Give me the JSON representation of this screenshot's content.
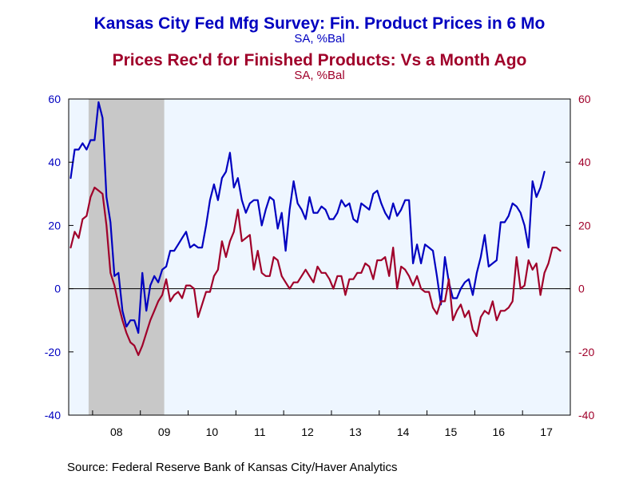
{
  "chart_data": {
    "type": "line",
    "title": "Kansas City Fed Mfg Survey: Fin. Product Prices in 6 Mo",
    "subtitle": "SA, %Bal",
    "title2": "Prices Rec'd for Finished Products: Vs a Month Ago",
    "subtitle2": "SA, %Bal",
    "x_tick_labels": [
      "08",
      "09",
      "10",
      "11",
      "12",
      "13",
      "14",
      "15",
      "16",
      "17"
    ],
    "x_range": [
      "2007-07",
      "2017-12"
    ],
    "ylim": [
      -40,
      60
    ],
    "y_ticks": [
      -40,
      -20,
      0,
      20,
      40,
      60
    ],
    "y2lim": [
      -40,
      60
    ],
    "y2_ticks": [
      -40,
      -20,
      0,
      20,
      40,
      60
    ],
    "recession_shading": {
      "start": "2007-12",
      "end": "2009-06",
      "color": "#c8c8c8"
    },
    "plot_background": "#eef6ff",
    "zero_line": true,
    "series": [
      {
        "name": "Kansas City Fed Mfg Survey: Fin. Product Prices in 6 Mo",
        "color": "#0000c0",
        "axis": "left",
        "start": "2007-07",
        "values": [
          35,
          44,
          44,
          46,
          44,
          47,
          47,
          59,
          54,
          29,
          21,
          4,
          5,
          -7,
          -12,
          -10,
          -10,
          -14,
          5,
          -7,
          1,
          4,
          2,
          6,
          7,
          12,
          12,
          14,
          16,
          18,
          13,
          14,
          13,
          13,
          20,
          28,
          33,
          28,
          35,
          37,
          43,
          32,
          35,
          28,
          24,
          27,
          28,
          28,
          20,
          25,
          29,
          28,
          19,
          24,
          12,
          25,
          34,
          27,
          25,
          22,
          29,
          24,
          24,
          26,
          25,
          22,
          22,
          24,
          28,
          26,
          27,
          22,
          21,
          27,
          26,
          25,
          30,
          31,
          27,
          24,
          22,
          27,
          23,
          25,
          28,
          28,
          8,
          14,
          8,
          14,
          13,
          12,
          4,
          -5,
          10,
          2,
          -3,
          -3,
          0,
          2,
          3,
          -2,
          5,
          10,
          17,
          7,
          8,
          9,
          21,
          21,
          23,
          27,
          26,
          24,
          20,
          13,
          34,
          29,
          32,
          37
        ]
      },
      {
        "name": "Prices Rec'd for Finished Products: Vs a Month Ago",
        "color": "#a0002a",
        "axis": "right",
        "start": "2007-07",
        "values": [
          13,
          18,
          16,
          22,
          23,
          29,
          32,
          31,
          30,
          20,
          5,
          1,
          -5,
          -10,
          -14,
          -17,
          -18,
          -21,
          -18,
          -14,
          -10,
          -7,
          -4,
          -2,
          3,
          -4,
          -2,
          -1,
          -3,
          1,
          1,
          0,
          -9,
          -5,
          -1,
          -1,
          4,
          6,
          15,
          10,
          15,
          18,
          25,
          15,
          16,
          17,
          6,
          12,
          5,
          4,
          4,
          10,
          9,
          4,
          2,
          0,
          2,
          2,
          4,
          6,
          4,
          2,
          7,
          5,
          5,
          3,
          0,
          4,
          4,
          -2,
          3,
          3,
          5,
          5,
          8,
          7,
          3,
          9,
          9,
          10,
          4,
          13,
          0,
          7,
          6,
          4,
          1,
          4,
          0,
          -1,
          -1,
          -6,
          -8,
          -4,
          -4,
          3,
          -10,
          -7,
          -5,
          -9,
          -7,
          -13,
          -15,
          -9,
          -7,
          -8,
          -4,
          -10,
          -7,
          -7,
          -6,
          -4,
          10,
          0,
          1,
          9,
          6,
          8,
          -2,
          5,
          8,
          13,
          13,
          12
        ]
      }
    ]
  },
  "source": "Source:  Federal Reserve Bank of Kansas City/Haver Analytics"
}
